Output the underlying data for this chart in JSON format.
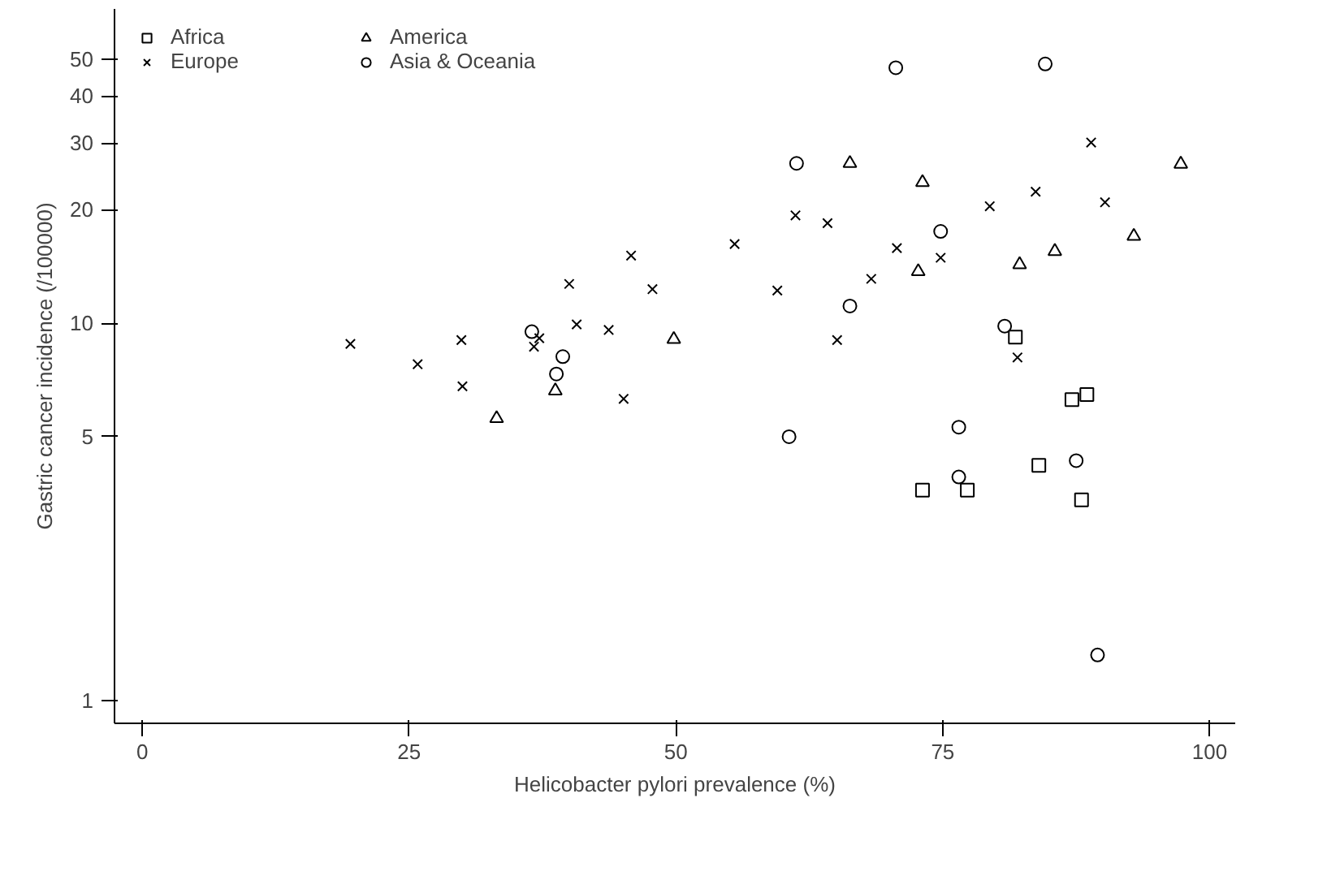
{
  "chart_data": {
    "type": "scatter",
    "xlabel": "Helicobacter pylori prevalence (%)",
    "ylabel": "Gastric cancer incidence (/100000)",
    "log": "y",
    "xlim": [
      -2.6,
      102.4
    ],
    "ylim": [
      0.87,
      68
    ],
    "xticks": [
      0,
      25,
      50,
      75,
      100
    ],
    "yticks": [
      1,
      5,
      10,
      20,
      30,
      40,
      50
    ],
    "grid": false,
    "legend": "top left",
    "series": [
      {
        "name": "Africa",
        "color": "#000000",
        "marker": "square",
        "x": [
          73.1,
          77.3,
          84.0,
          88.0,
          81.8,
          87.1,
          88.5
        ],
        "values": [
          3.61,
          3.61,
          4.2,
          3.4,
          9.18,
          6.27,
          6.47
        ]
      },
      {
        "name": "Europe",
        "color": "#000000",
        "marker": "cross",
        "x": [
          88.9,
          83.7,
          90.2,
          79.4,
          61.2,
          64.2,
          55.5,
          70.7,
          74.8,
          68.3,
          59.5,
          65.1,
          82.0,
          45.8,
          40.0,
          47.8,
          19.5,
          29.9,
          37.2,
          36.7,
          40.7,
          43.7,
          25.8,
          30.0,
          45.1
        ],
        "values": [
          30.1,
          22.3,
          20.9,
          20.4,
          19.3,
          18.4,
          16.2,
          15.8,
          14.9,
          13.1,
          12.2,
          9.02,
          8.11,
          15.1,
          12.7,
          12.3,
          8.81,
          9.02,
          9.12,
          8.66,
          9.92,
          9.59,
          7.78,
          6.8,
          6.3
        ]
      },
      {
        "name": "America",
        "color": "#000000",
        "marker": "triangle",
        "x": [
          66.3,
          97.3,
          73.1,
          92.9,
          85.5,
          82.2,
          72.7,
          49.8,
          38.7,
          33.2
        ],
        "values": [
          26.5,
          26.4,
          23.6,
          17.0,
          15.5,
          14.3,
          13.7,
          9.06,
          6.62,
          5.59
        ]
      },
      {
        "name": "Asia & Oceania",
        "color": "#000000",
        "marker": "circle",
        "x": [
          70.6,
          84.6,
          61.3,
          74.8,
          66.3,
          80.8,
          76.5,
          60.6,
          76.5,
          87.5,
          89.5,
          36.5,
          39.4,
          38.8
        ],
        "values": [
          47.5,
          48.6,
          26.5,
          17.5,
          11.1,
          9.82,
          5.3,
          5.0,
          3.91,
          4.32,
          1.32,
          9.49,
          8.15,
          7.33
        ]
      }
    ]
  }
}
